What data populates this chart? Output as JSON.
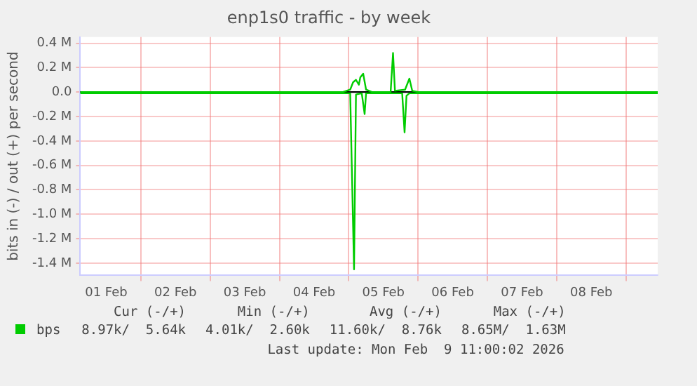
{
  "chart_data": {
    "type": "line",
    "title": "enp1s0 traffic - by week",
    "ylabel": "bits in (-) / out (+) per second",
    "xlim": [
      "2026-02-01T03:00",
      "2026-02-09T11:00"
    ],
    "xticks": [
      {
        "value": "2026-02-01T12:00",
        "label": "01 Feb"
      },
      {
        "value": "2026-02-02T00:00",
        "label": null
      },
      {
        "value": "2026-02-02T12:00",
        "label": "02 Feb"
      },
      {
        "value": "2026-02-03T00:00",
        "label": null
      },
      {
        "value": "2026-02-03T12:00",
        "label": "03 Feb"
      },
      {
        "value": "2026-02-04T00:00",
        "label": null
      },
      {
        "value": "2026-02-04T12:00",
        "label": "04 Feb"
      },
      {
        "value": "2026-02-05T00:00",
        "label": null
      },
      {
        "value": "2026-02-05T12:00",
        "label": "05 Feb"
      },
      {
        "value": "2026-02-06T00:00",
        "label": null
      },
      {
        "value": "2026-02-06T12:00",
        "label": "06 Feb"
      },
      {
        "value": "2026-02-07T00:00",
        "label": null
      },
      {
        "value": "2026-02-07T12:00",
        "label": "07 Feb"
      },
      {
        "value": "2026-02-08T00:00",
        "label": null
      },
      {
        "value": "2026-02-08T12:00",
        "label": "08 Feb"
      },
      {
        "value": "2026-02-09T00:00",
        "label": null
      }
    ],
    "ylim": [
      -1500000,
      450000
    ],
    "yticks": [
      {
        "value": 400000,
        "label": "0.4 M"
      },
      {
        "value": 200000,
        "label": "0.2 M"
      },
      {
        "value": 0,
        "label": "0.0"
      },
      {
        "value": -200000,
        "label": "-0.2 M"
      },
      {
        "value": -400000,
        "label": "-0.4 M"
      },
      {
        "value": -600000,
        "label": "-0.6 M"
      },
      {
        "value": -800000,
        "label": "-0.8 M"
      },
      {
        "value": -1000000,
        "label": "-1.0 M"
      },
      {
        "value": -1200000,
        "label": "-1.2 M"
      },
      {
        "value": -1400000,
        "label": "-1.4 M"
      }
    ],
    "grid": true,
    "legend": "bottom",
    "marker": "none",
    "line_style": "solid",
    "series": [
      {
        "name": "bps",
        "color": "#00cc00",
        "x": [
          "2026-02-01T03:00",
          "2026-02-04T22:00",
          "2026-02-05T00:30",
          "2026-02-05T01:30",
          "2026-02-05T02:30",
          "2026-02-05T03:30",
          "2026-02-05T04:00",
          "2026-02-05T05:00",
          "2026-02-05T06:00",
          "2026-02-05T08:00",
          "2026-02-05T14:30",
          "2026-02-05T15:20",
          "2026-02-05T16:00",
          "2026-02-05T19:30",
          "2026-02-05T21:00",
          "2026-02-05T22:00",
          "2026-02-06T00:00",
          "2026-02-09T11:00"
        ],
        "values": [
          0,
          0,
          20000,
          80000,
          100000,
          60000,
          120000,
          150000,
          20000,
          0,
          0,
          320000,
          10000,
          20000,
          110000,
          10000,
          0,
          0
        ]
      },
      {
        "color": "#00cc00",
        "x": [
          "2026-02-01T03:00",
          "2026-02-05T00:30",
          "2026-02-05T01:50",
          "2026-02-05T02:30",
          "2026-02-05T04:30",
          "2026-02-05T05:30",
          "2026-02-05T06:00",
          "2026-02-05T18:30",
          "2026-02-05T19:20",
          "2026-02-05T20:00",
          "2026-02-05T21:00",
          "2026-02-09T11:00"
        ],
        "values": [
          -10000,
          -10000,
          -1450000,
          -20000,
          -10000,
          -180000,
          -10000,
          -10000,
          -330000,
          -30000,
          -10000,
          -10000
        ]
      }
    ],
    "annotations": [
      "Cur (-/+)",
      "Min (-/+)",
      "Avg (-/+)",
      "Max (-/+)",
      "8.97k/  5.64k",
      "4.01k/  2.60k",
      "11.60k/  8.76k",
      "8.65M/  1.63M",
      "Last update: Mon Feb  9 11:00:02 2026"
    ]
  }
}
